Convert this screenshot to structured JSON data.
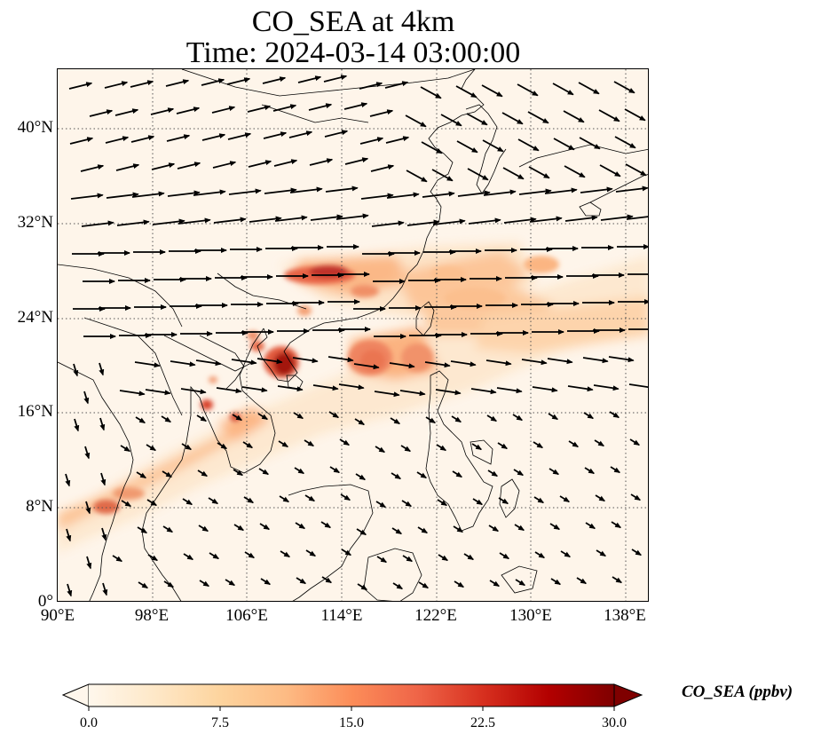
{
  "title": {
    "line1": "CO_SEA at 4km",
    "line2": "Time: 2024-03-14 03:00:00"
  },
  "map": {
    "extent": {
      "lon": [
        90,
        140
      ],
      "lat": [
        0,
        45
      ]
    },
    "lat_ticks": [
      "40°N",
      "32°N",
      "24°N",
      "16°N",
      "8°N",
      "0°"
    ],
    "lon_ticks": [
      "90°E",
      "98°E",
      "106°E",
      "114°E",
      "122°E",
      "130°E",
      "138°E"
    ],
    "gridlines": "dotted"
  },
  "colorbar": {
    "label": "CO_SEA (ppbv)",
    "colormap": "OrRd",
    "range": [
      0,
      30
    ],
    "extend": "both",
    "ticks": [
      "0.0",
      "7.5",
      "15.0",
      "22.5",
      "30.0"
    ],
    "colors": [
      "#fff7ec",
      "#fee8c8",
      "#fdd49e",
      "#fdbb84",
      "#fc8d59",
      "#ef6548",
      "#d7301f",
      "#b30000",
      "#7f0000"
    ]
  }
}
